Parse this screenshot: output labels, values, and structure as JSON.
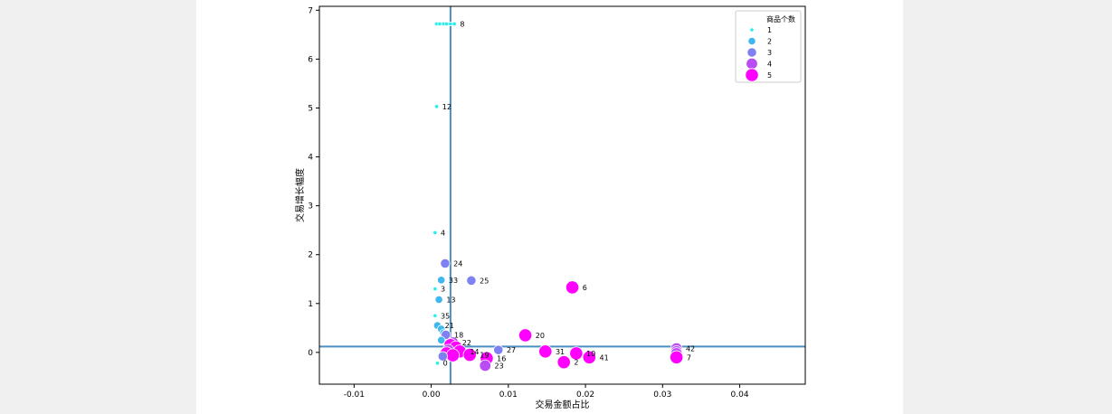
{
  "chart_data": {
    "type": "scatter",
    "xlabel": "交易金额占比",
    "ylabel": "交易增长幅度",
    "xlim": [
      -0.0145,
      0.0485
    ],
    "ylim": [
      -0.65,
      7.08
    ],
    "x_ticks": [
      -0.01,
      0.0,
      0.01,
      0.02,
      0.03,
      0.04
    ],
    "x_tick_labels": [
      "-0.01",
      "0.00",
      "0.01",
      "0.02",
      "0.03",
      "0.04"
    ],
    "y_ticks": [
      0,
      1,
      2,
      3,
      4,
      5,
      6,
      7
    ],
    "y_tick_labels": [
      "0",
      "1",
      "2",
      "3",
      "4",
      "5",
      "6",
      "7"
    ],
    "reference_lines": {
      "x": 0.0025,
      "y": 0.12,
      "color": "#4a8fc3"
    },
    "size_legend": {
      "title": "商品个数",
      "placement": "top-right",
      "entries": [
        {
          "label": "1",
          "value": 1,
          "color": "#20f0f0"
        },
        {
          "label": "2",
          "value": 2,
          "color": "#3fb8f0"
        },
        {
          "label": "3",
          "value": 3,
          "color": "#7f80f2"
        },
        {
          "label": "4",
          "value": 4,
          "color": "#b94cf3"
        },
        {
          "label": "5",
          "value": 5,
          "color": "#ff00ff"
        }
      ]
    },
    "points": [
      {
        "label": "8",
        "x": 0.003,
        "y": 6.72,
        "size": 1
      },
      {
        "label": "",
        "x": 0.0007,
        "y": 6.72,
        "size": 1
      },
      {
        "label": "",
        "x": 0.0011,
        "y": 6.72,
        "size": 1
      },
      {
        "label": "",
        "x": 0.0016,
        "y": 6.72,
        "size": 1
      },
      {
        "label": "",
        "x": 0.002,
        "y": 6.72,
        "size": 1
      },
      {
        "label": "",
        "x": 0.0025,
        "y": 6.72,
        "size": 1
      },
      {
        "label": "12",
        "x": 0.0007,
        "y": 5.03,
        "size": 1
      },
      {
        "label": "4",
        "x": 0.0005,
        "y": 2.45,
        "size": 1
      },
      {
        "label": "24",
        "x": 0.0018,
        "y": 1.82,
        "size": 3
      },
      {
        "label": "33",
        "x": 0.0013,
        "y": 1.48,
        "size": 2
      },
      {
        "label": "25",
        "x": 0.0052,
        "y": 1.47,
        "size": 3
      },
      {
        "label": "3",
        "x": 0.0005,
        "y": 1.3,
        "size": 1
      },
      {
        "label": "6",
        "x": 0.0183,
        "y": 1.33,
        "size": 5
      },
      {
        "label": "13",
        "x": 0.001,
        "y": 1.08,
        "size": 2
      },
      {
        "label": "35",
        "x": 0.0005,
        "y": 0.75,
        "size": 1
      },
      {
        "label": "21",
        "x": 0.0008,
        "y": 0.55,
        "size": 2
      },
      {
        "label": "",
        "x": 0.0013,
        "y": 0.48,
        "size": 2
      },
      {
        "label": "",
        "x": 0.0016,
        "y": 0.4,
        "size": 2
      },
      {
        "label": "18",
        "x": 0.0019,
        "y": 0.36,
        "size": 3
      },
      {
        "label": "20",
        "x": 0.0122,
        "y": 0.35,
        "size": 5
      },
      {
        "label": "",
        "x": 0.0013,
        "y": 0.25,
        "size": 2
      },
      {
        "label": "22",
        "x": 0.0028,
        "y": 0.2,
        "size": 4
      },
      {
        "label": "",
        "x": 0.0025,
        "y": 0.15,
        "size": 5
      },
      {
        "label": "",
        "x": 0.0032,
        "y": 0.1,
        "size": 5
      },
      {
        "label": "",
        "x": 0.0022,
        "y": 0.05,
        "size": 4
      },
      {
        "label": "14",
        "x": 0.0037,
        "y": 0.02,
        "size": 5
      },
      {
        "label": "27",
        "x": 0.0087,
        "y": 0.05,
        "size": 3
      },
      {
        "label": "31",
        "x": 0.0148,
        "y": 0.02,
        "size": 5
      },
      {
        "label": "10",
        "x": 0.0188,
        "y": -0.02,
        "size": 5
      },
      {
        "label": "42",
        "x": 0.0318,
        "y": 0.08,
        "size": 4
      },
      {
        "label": "",
        "x": 0.0318,
        "y": 0.02,
        "size": 4
      },
      {
        "label": "",
        "x": 0.0318,
        "y": -0.02,
        "size": 4
      },
      {
        "label": "7",
        "x": 0.0318,
        "y": -0.1,
        "size": 5
      },
      {
        "label": "",
        "x": 0.002,
        "y": -0.02,
        "size": 5
      },
      {
        "label": "",
        "x": 0.0028,
        "y": -0.06,
        "size": 5
      },
      {
        "label": "",
        "x": 0.0015,
        "y": -0.08,
        "size": 3
      },
      {
        "label": "19",
        "x": 0.005,
        "y": -0.05,
        "size": 5
      },
      {
        "label": "41",
        "x": 0.0205,
        "y": -0.1,
        "size": 5
      },
      {
        "label": "16",
        "x": 0.0072,
        "y": -0.12,
        "size": 5
      },
      {
        "label": "2",
        "x": 0.0172,
        "y": -0.2,
        "size": 5
      },
      {
        "label": "0",
        "x": 0.0008,
        "y": -0.22,
        "size": 1
      },
      {
        "label": "23",
        "x": 0.007,
        "y": -0.27,
        "size": 4
      }
    ]
  }
}
